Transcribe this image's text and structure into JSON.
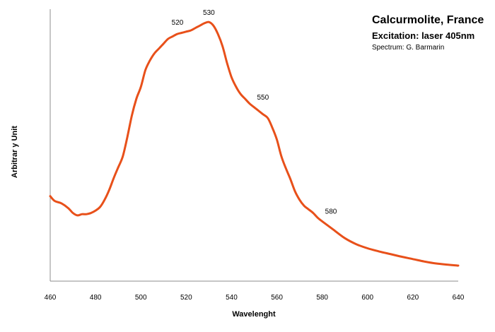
{
  "chart_data": {
    "type": "line",
    "title": "Calcurmolite, France",
    "subtitle": "Excitation: laser 405nm",
    "credit": "Spectrum: G. Barmarin",
    "xlabel": "Wavelenght",
    "ylabel": "Arbitrar y Unit",
    "xlim": [
      460,
      640
    ],
    "ylim": [
      0,
      100
    ],
    "x_ticks": [
      "460",
      "480",
      "500",
      "520",
      "540",
      "560",
      "580",
      "600",
      "620",
      "640"
    ],
    "y_ticks_shown": false,
    "grid": false,
    "legend": "none",
    "series": [
      {
        "color": "#e8501a",
        "x": [
          460,
          462,
          465,
          468,
          470,
          472,
          474,
          476,
          478,
          480,
          482,
          484,
          486,
          488,
          490,
          492,
          494,
          496,
          498,
          500,
          502,
          504,
          506,
          508,
          510,
          512,
          514,
          516,
          518,
          520,
          522,
          524,
          526,
          528,
          530,
          532,
          534,
          536,
          538,
          540,
          542,
          544,
          546,
          548,
          550,
          552,
          554,
          556,
          558,
          560,
          562,
          564,
          566,
          568,
          570,
          572,
          574,
          576,
          578,
          580,
          585,
          590,
          595,
          600,
          605,
          610,
          615,
          620,
          625,
          630,
          635,
          640
        ],
        "y": [
          29.5,
          27.5,
          26.5,
          24.5,
          22.5,
          21.5,
          22,
          22,
          22.5,
          23.5,
          25,
          28,
          32,
          37,
          41.5,
          46,
          54,
          63,
          70,
          75,
          82,
          86,
          89,
          91,
          93,
          95,
          96,
          97,
          97.5,
          98,
          98.5,
          99.5,
          100.5,
          101.5,
          102,
          100.5,
          97,
          92,
          85,
          79,
          75,
          72,
          70,
          68,
          66.5,
          65,
          63.5,
          62,
          58,
          53,
          46,
          41,
          36.5,
          31.5,
          28,
          25.5,
          24,
          22.5,
          20.5,
          19,
          15.5,
          12,
          9.5,
          7.8,
          6.5,
          5.4,
          4.3,
          3.3,
          2.3,
          1.5,
          1,
          0.6
        ]
      }
    ],
    "annotations": [
      {
        "x": 520,
        "y": 98,
        "text": "520"
      },
      {
        "x": 530,
        "y": 102,
        "text": "530"
      },
      {
        "x": 550,
        "y": 66.5,
        "text": "550"
      },
      {
        "x": 580,
        "y": 19,
        "text": "580"
      }
    ]
  }
}
